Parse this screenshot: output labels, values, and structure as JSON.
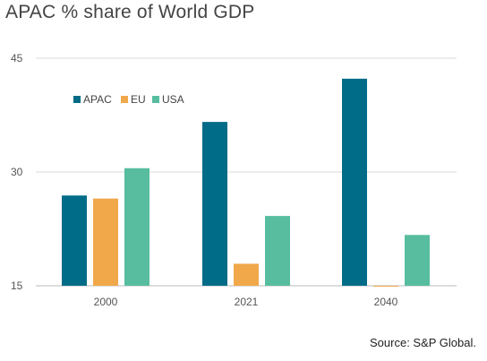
{
  "title": "APAC % share of World GDP",
  "source": "Source: S&P Global.",
  "chart_data": {
    "type": "bar",
    "categories": [
      "2000",
      "2021",
      "2040"
    ],
    "series": [
      {
        "name": "APAC",
        "color": "#006c87",
        "values": [
          26.9,
          36.6,
          42.3
        ]
      },
      {
        "name": "EU",
        "color": "#f0a84a",
        "values": [
          26.5,
          17.9,
          14.8
        ]
      },
      {
        "name": "USA",
        "color": "#57bd9e",
        "values": [
          30.5,
          24.2,
          21.7
        ]
      }
    ],
    "yticks": [
      15,
      30,
      45
    ],
    "ylim": [
      15,
      45
    ],
    "grid": true,
    "legend_position": "top-left"
  }
}
